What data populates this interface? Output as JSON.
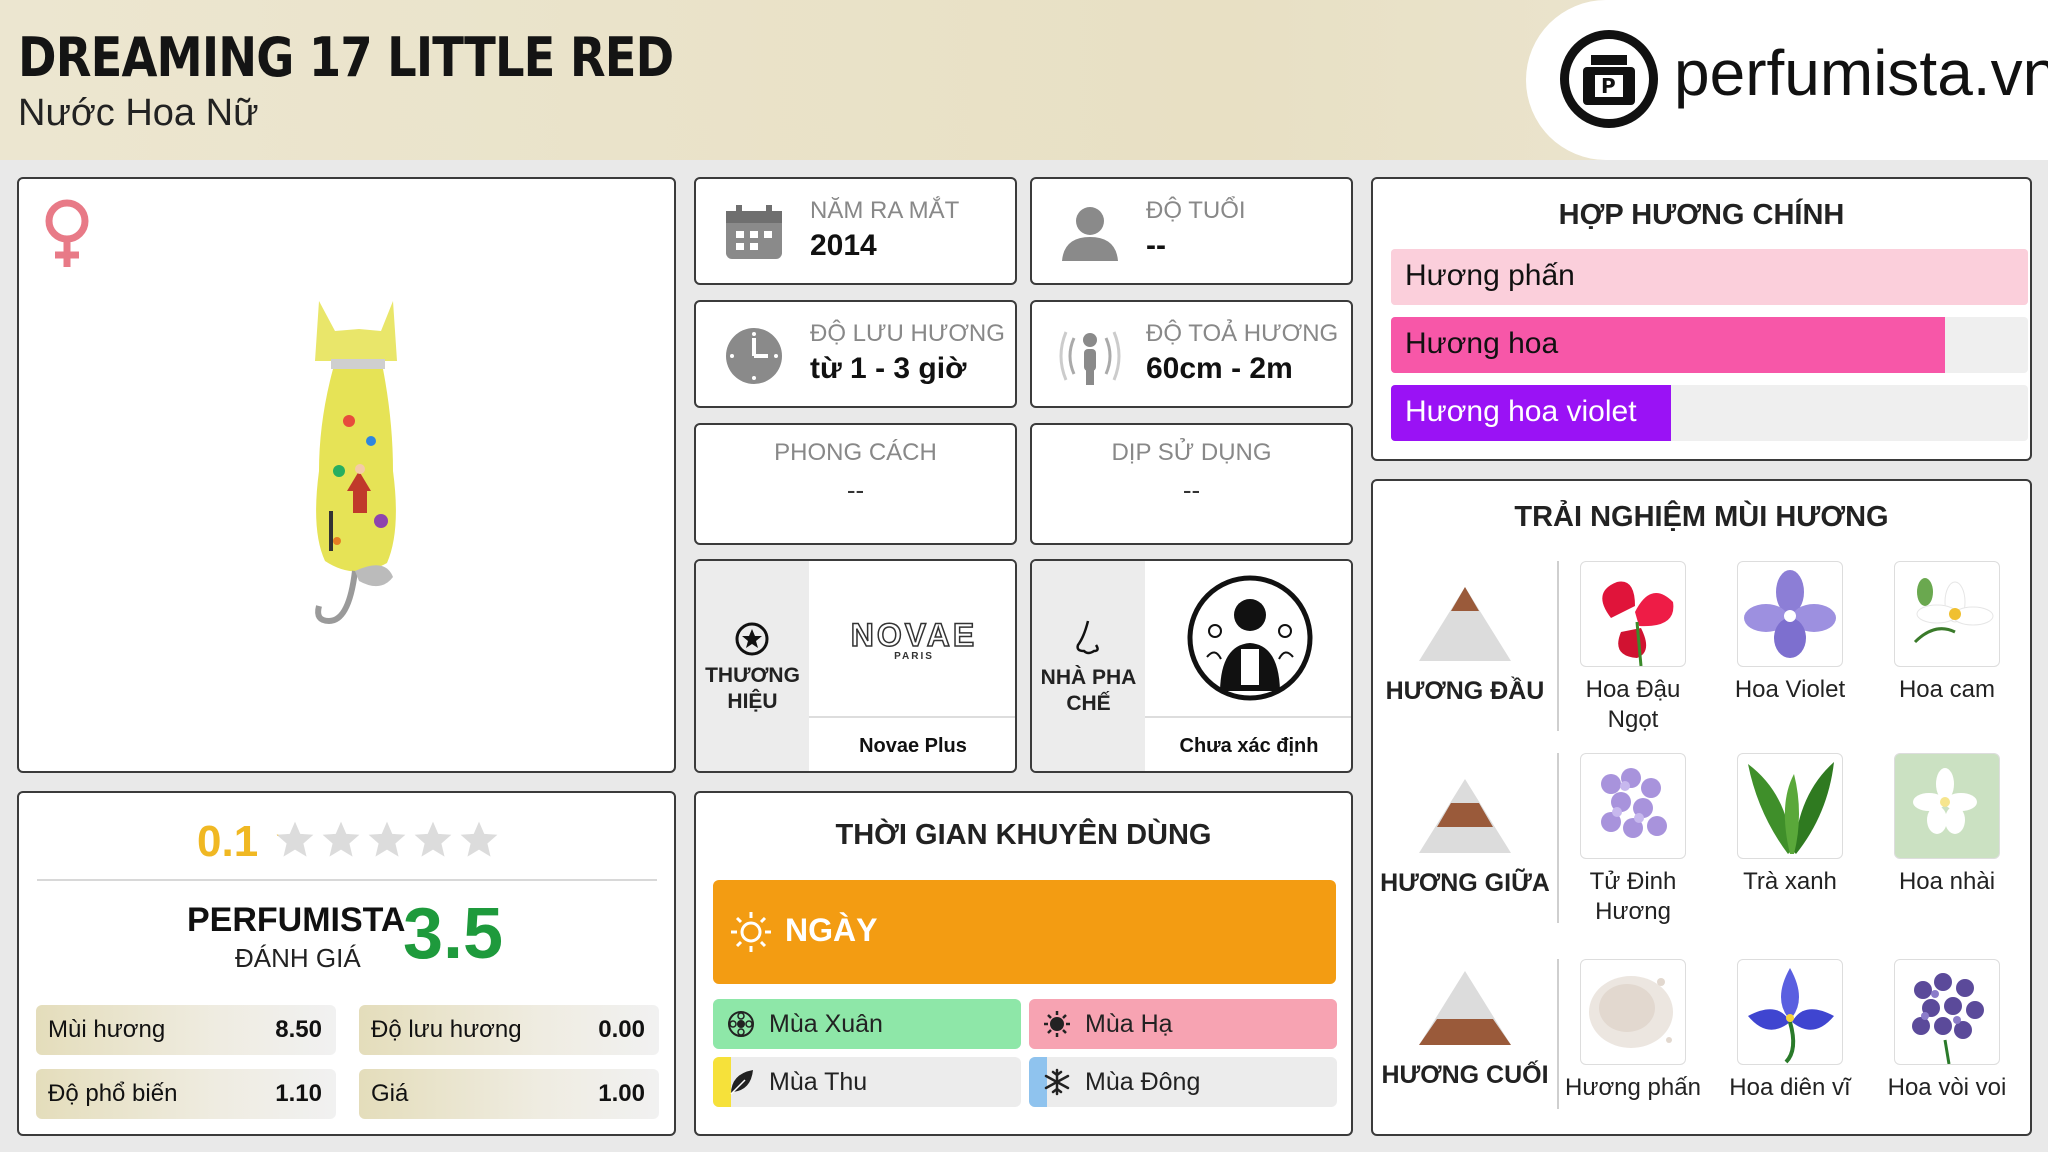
{
  "header": {
    "title": "DREAMING 17 LITTLE RED",
    "subtitle": "Nước Hoa Nữ",
    "logo_text": "perfumista.vn"
  },
  "info": {
    "launch_year": {
      "caption": "NĂM RA MẮT",
      "value": "2014"
    },
    "age": {
      "caption": "ĐỘ TUỔI",
      "value": "--"
    },
    "longevity": {
      "caption": "ĐỘ LƯU HƯƠNG",
      "value": "từ 1 - 3 giờ"
    },
    "sillage": {
      "caption": "ĐỘ TOẢ HƯƠNG",
      "value": "60cm - 2m"
    },
    "style": {
      "caption": "PHONG CÁCH",
      "value": "--"
    },
    "occasion": {
      "caption": "DỊP SỬ DỤNG",
      "value": "--"
    },
    "brand": {
      "caption_line1": "THƯƠNG",
      "caption_line2": "HIỆU",
      "name": "Novae Plus",
      "logo_text": "NOVAE",
      "logo_sub": "PARIS"
    },
    "perfumer": {
      "caption_line1": "NHÀ PHA",
      "caption_line2": "CHẾ",
      "name": "Chưa xác định"
    }
  },
  "accords": {
    "title": "HỢP HƯƠNG CHÍNH",
    "items": [
      {
        "label": "Hương phấn",
        "level": 1.0,
        "color": "#fbcfdb"
      },
      {
        "label": "Hương hoa",
        "level": 0.87,
        "color": "#f757a8"
      },
      {
        "label": "Hương hoa violet",
        "level": 0.44,
        "color": "#9a12f5"
      }
    ]
  },
  "notes": {
    "title": "TRẢI NGHIỆM MÙI HƯƠNG",
    "top": {
      "label": "HƯƠNG ĐẦU",
      "items": [
        {
          "name_l1": "Hoa Đậu",
          "name_l2": "Ngọt",
          "icon": "sweet-pea-flower"
        },
        {
          "name_l1": "Hoa Violet",
          "name_l2": "",
          "icon": "violet-flower"
        },
        {
          "name_l1": "Hoa cam",
          "name_l2": "",
          "icon": "orange-blossom"
        }
      ]
    },
    "middle": {
      "label": "HƯƠNG GIỮA",
      "items": [
        {
          "name_l1": "Tử Đinh",
          "name_l2": "Hương",
          "icon": "lilac-flower"
        },
        {
          "name_l1": "Trà xanh",
          "name_l2": "",
          "icon": "green-tea-leaf"
        },
        {
          "name_l1": "Hoa nhài",
          "name_l2": "",
          "icon": "jasmine-flower"
        }
      ]
    },
    "base": {
      "label": "HƯƠNG CUỐI",
      "items": [
        {
          "name_l1": "Hương phấn",
          "name_l2": "",
          "icon": "powder"
        },
        {
          "name_l1": "Hoa diên vĩ",
          "name_l2": "",
          "icon": "iris-flower"
        },
        {
          "name_l1": "Hoa vòi voi",
          "name_l2": "",
          "icon": "heliotrope-flower"
        }
      ]
    }
  },
  "rating": {
    "user_score": "0.1",
    "user_stars": 0.02,
    "perfumista_label": "PERFUMISTA",
    "perfumista_sub": "ĐÁNH GIÁ",
    "perfumista_score": "3.5",
    "metrics": [
      {
        "label": "Mùi hương",
        "value": "8.50"
      },
      {
        "label": "Độ lưu hương",
        "value": "0.00"
      },
      {
        "label": "Độ phổ biến",
        "value": "1.10"
      },
      {
        "label": "Giá",
        "value": "1.00"
      }
    ]
  },
  "recommended": {
    "title": "THỜI GIAN KHUYÊN DÙNG",
    "day": "NGÀY",
    "seasons": [
      {
        "label": "Mùa Xuân",
        "level": 1.0,
        "color": "#8ee7a8"
      },
      {
        "label": "Mùa Hạ",
        "level": 1.0,
        "color": "#f7a3b2"
      },
      {
        "label": "Mùa Thu",
        "level": 0.06,
        "color": "#f6e13a"
      },
      {
        "label": "Mùa Đông",
        "level": 0.06,
        "color": "#8fc3ee"
      }
    ]
  },
  "colors": {
    "gold": "#f0b823",
    "green_score": "#1e9a3c",
    "day_bar": "#f39c12",
    "gender_icon": "#e87a87"
  }
}
